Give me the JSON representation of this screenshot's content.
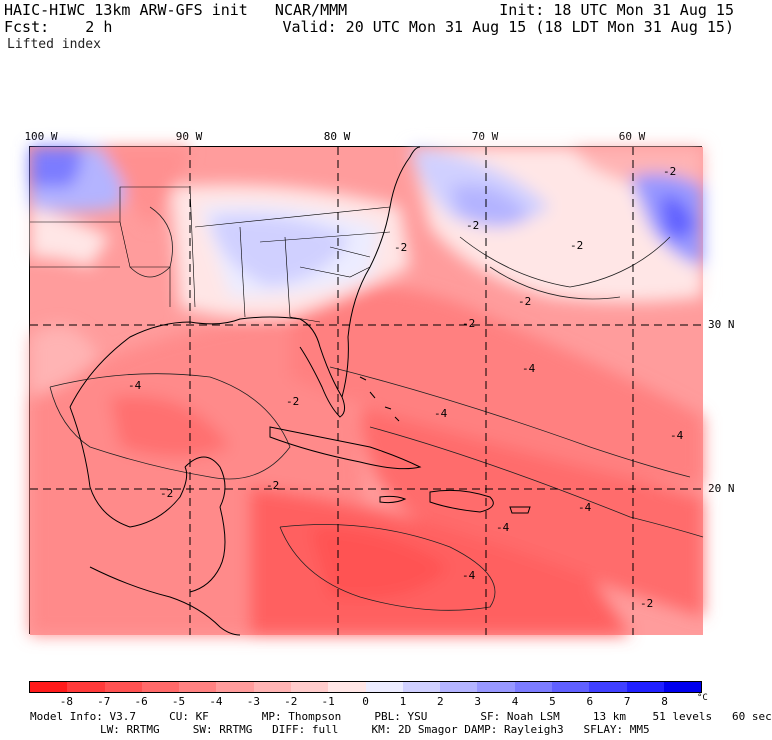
{
  "header": {
    "model_line": "HAIC-HIWC 13km ARW-GFS init   NCAR/MMM",
    "fcst_line": "Fcst:    2 h",
    "init_line": "Init: 18 UTC Mon 31 Aug 15",
    "valid_line": "Valid: 20 UTC Mon 31 Aug 15 (18 LDT Mon 31 Aug 15)",
    "field_name": "Lifted index"
  },
  "map": {
    "longitude_labels": [
      "100 W",
      "90 W",
      "80 W",
      "70 W",
      "60 W"
    ],
    "latitude_labels": [
      "30 N",
      "20 N"
    ],
    "contour_labels": [
      "-2",
      "-4"
    ]
  },
  "legend": {
    "tick_labels": [
      "-8",
      "-7",
      "-6",
      "-5",
      "-4",
      "-3",
      "-2",
      "-1",
      "0",
      "1",
      "2",
      "3",
      "4",
      "5",
      "6",
      "7",
      "8"
    ],
    "unit": "°C",
    "colors": [
      "#ff1a1a",
      "#ff3a3a",
      "#ff5252",
      "#ff6a6a",
      "#ff8282",
      "#ff9c9c",
      "#ffb4b4",
      "#ffcccc",
      "#ffe6e6",
      "#ececff",
      "#d0d0ff",
      "#b4b4ff",
      "#9898ff",
      "#7c7cff",
      "#6060ff",
      "#4040ff",
      "#2020ff",
      "#0000ee"
    ]
  },
  "model_info": {
    "line1": "Model Info: V3.7     CU: KF        MP: Thompson     PBL: YSU        SF: Noah LSM     13 km    51 levels   60 sec",
    "line2": "LW: RRTMG     SW: RRTMG   DIFF: full     KM: 2D Smagor DAMP: Rayleigh3   SFLAY: MM5"
  }
}
